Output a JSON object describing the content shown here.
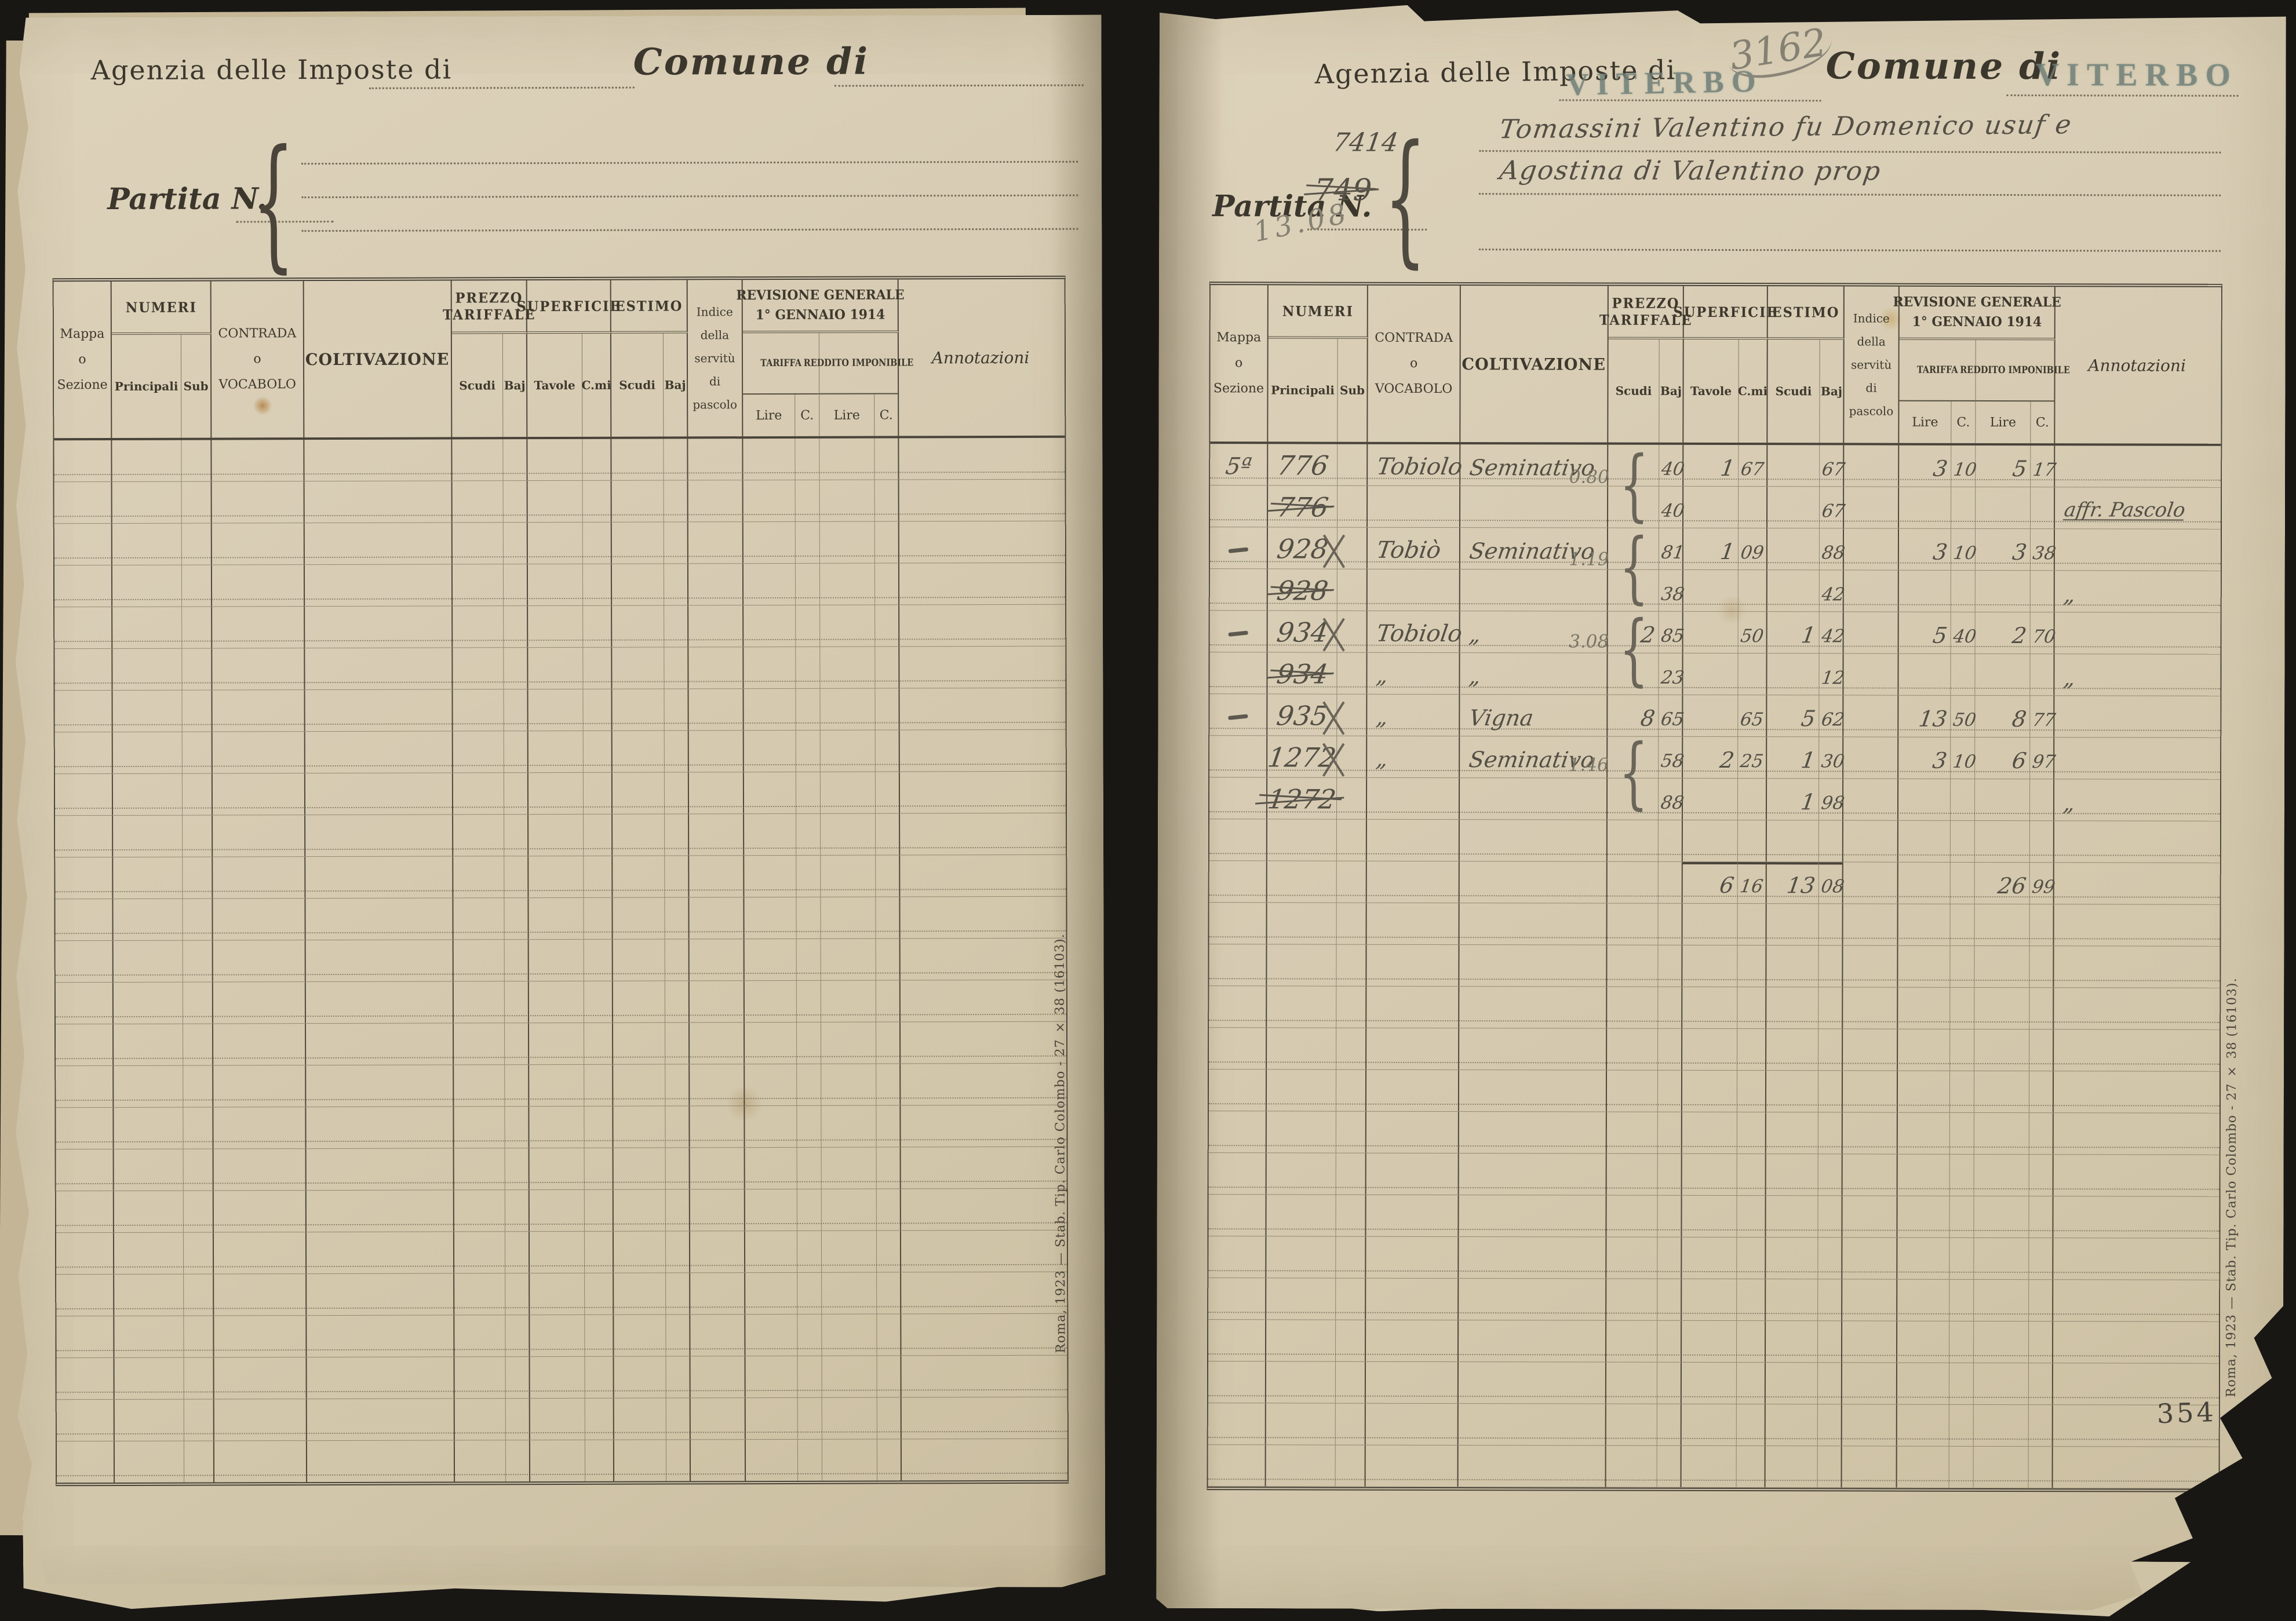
{
  "labels": {
    "agency": "Agenzia delle Imposte di",
    "comune": "Comune di",
    "partita": "Partita N."
  },
  "table_headers": {
    "mappa_line1": "Mappa",
    "mappa_line2": "o",
    "mappa_line3": "Sezione",
    "numeri": "NUMERI",
    "principali": "Principali",
    "sub": "Sub",
    "contrada_line1": "CONTRADA",
    "contrada_line2": "o",
    "contrada_line3": "VOCABOLO",
    "coltivazione": "COLTIVAZIONE",
    "prezzo_line1": "PREZZO",
    "prezzo_line2": "TARIFFALE",
    "scudi": "Scudi",
    "baj": "Baj",
    "superficie": "SUPERFICIE",
    "tavole": "Tavole",
    "cmi": "C.mi",
    "estimo": "ESTIMO",
    "indice": [
      "Indice",
      "della",
      "servitù",
      "di",
      "pascolo"
    ],
    "revisione_line1": "REVISIONE GENERALE",
    "revisione_line2": "1° GENNAIO 1914",
    "tariffa": "TARIFFA",
    "reddito": "REDDITO IMPONIBILE",
    "lire": "Lire",
    "c": "C.",
    "annotazioni": "Annotazioni"
  },
  "right_page": {
    "agency_stamp": "VITERBO",
    "registry_number": "3162",
    "comune_stamp": "VITERBO",
    "owner_number": "7414",
    "owner_line1": "Tomassini Valentino fu Domenico usuf e",
    "owner_line2": "Agostina di Valentino prop",
    "partita_struck": "749",
    "pencil_note": "13.08",
    "page_number": "354"
  },
  "entries": [
    {
      "row": 0,
      "mappa": "5ª",
      "num": "776",
      "contrada": "Tobiolo",
      "colt": "Seminativo",
      "pb": "40",
      "st": "1",
      "sc": "67",
      "eb": "67",
      "tl": "3",
      "tc": "10",
      "rl": "5",
      "rc": "17"
    },
    {
      "row": 1,
      "num": "776",
      "struck": true,
      "pb": "40",
      "eb": "67",
      "annot": "affr. Pascolo",
      "annot_ul": true
    },
    {
      "row": 2,
      "dash": true,
      "num": "928",
      "x": true,
      "contrada": "Tobiò",
      "colt": "Seminativo",
      "pb": "81",
      "st": "1",
      "sc": "09",
      "eb": "88",
      "tl": "3",
      "tc": "10",
      "rl": "3",
      "rc": "38"
    },
    {
      "row": 3,
      "num": "928",
      "struck": true,
      "pb": "38",
      "eb": "42",
      "annot": "„"
    },
    {
      "row": 4,
      "dash": true,
      "num": "934",
      "x": true,
      "contrada": "Tobiolo",
      "colt": "„",
      "ps": "2",
      "pb": "85",
      "sc": "50",
      "es": "1",
      "eb": "42",
      "tl": "5",
      "tc": "40",
      "rl": "2",
      "rc": "70"
    },
    {
      "row": 5,
      "num": "934",
      "struck": true,
      "contrada": "„",
      "colt": "„",
      "pb": "23",
      "eb": "12",
      "annot": "„"
    },
    {
      "row": 6,
      "dash": true,
      "num": "935",
      "x": true,
      "contrada": "„",
      "colt": "Vigna",
      "ps": "8",
      "pb": "65",
      "sc": "65",
      "es": "5",
      "eb": "62",
      "tl": "13",
      "tc": "50",
      "rl": "8",
      "rc": "77"
    },
    {
      "row": 7,
      "num": "1272",
      "x": true,
      "contrada": "„",
      "colt": "Seminativo",
      "pb": "58",
      "st": "2",
      "sc": "25",
      "es": "1",
      "eb": "30",
      "tl": "3",
      "tc": "10",
      "rl": "6",
      "rc": "97"
    },
    {
      "row": 8,
      "num": "1272",
      "struck": true,
      "pb": "88",
      "es": "1",
      "eb": "98",
      "annot": "„"
    }
  ],
  "braces": [
    {
      "value": "0.80",
      "row": 0
    },
    {
      "value": "1.19",
      "row": 2
    },
    {
      "value": "3.08",
      "row": 4
    },
    {
      "value": "1.46",
      "row": 7
    }
  ],
  "totals": {
    "row": 10,
    "st": "6",
    "sc": "16",
    "es": "13",
    "eb": "08",
    "rl": "26",
    "rc": "99"
  },
  "imprint": "Roma, 1923 — Stab. Tip. Carlo Colombo - 27 × 38 (16103).",
  "row_count": 25
}
